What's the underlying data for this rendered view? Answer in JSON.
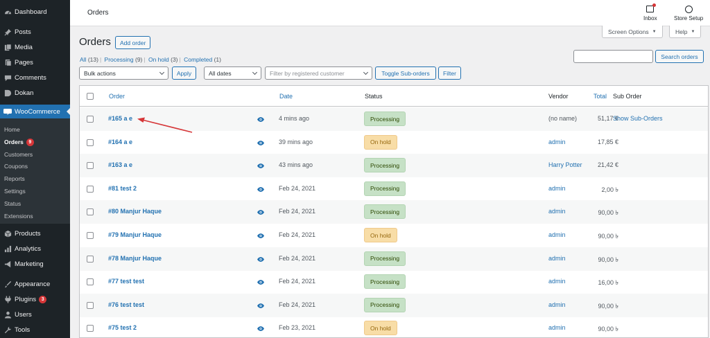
{
  "sidebar": {
    "top_items": [
      {
        "label": "Dashboard",
        "icon": "dashboard-icon"
      },
      {
        "label": "Posts",
        "icon": "pin-icon"
      },
      {
        "label": "Media",
        "icon": "media-icon"
      },
      {
        "label": "Pages",
        "icon": "pages-icon"
      },
      {
        "label": "Comments",
        "icon": "comments-icon"
      },
      {
        "label": "Dokan",
        "icon": "dokan-icon"
      }
    ],
    "woocommerce": {
      "label": "WooCommerce",
      "icon": "woocommerce-icon"
    },
    "submenu": [
      {
        "label": "Home"
      },
      {
        "label": "Orders",
        "badge": "9"
      },
      {
        "label": "Customers"
      },
      {
        "label": "Coupons"
      },
      {
        "label": "Reports"
      },
      {
        "label": "Settings"
      },
      {
        "label": "Status"
      },
      {
        "label": "Extensions"
      }
    ],
    "bottom_items": [
      {
        "label": "Products",
        "icon": "products-icon"
      },
      {
        "label": "Analytics",
        "icon": "analytics-icon"
      },
      {
        "label": "Marketing",
        "icon": "marketing-icon"
      },
      {
        "label": "Appearance",
        "icon": "appearance-icon"
      },
      {
        "label": "Plugins",
        "icon": "plugins-icon",
        "badge": "3"
      },
      {
        "label": "Users",
        "icon": "users-icon"
      },
      {
        "label": "Tools",
        "icon": "tools-icon"
      }
    ]
  },
  "topbar": {
    "title": "Orders",
    "inbox_label": "Inbox",
    "store_setup_label": "Store Setup"
  },
  "screen_options_label": "Screen Options",
  "help_label": "Help",
  "page_title": "Orders",
  "add_order_label": "Add order",
  "filters": {
    "views": [
      {
        "label": "All",
        "count": "(13)"
      },
      {
        "label": "Processing",
        "count": "(9)"
      },
      {
        "label": "On hold",
        "count": "(3)"
      },
      {
        "label": "Completed",
        "count": "(1)"
      }
    ],
    "separator": "|",
    "bulk_actions": "Bulk actions",
    "apply_label": "Apply",
    "all_dates": "All dates",
    "customer_placeholder": "Filter by registered customer",
    "toggle_suborders_label": "Toggle Sub-orders",
    "filter_label": "Filter",
    "search_value": "",
    "search_button_label": "Search orders"
  },
  "table": {
    "headers": {
      "order": "Order",
      "date": "Date",
      "status": "Status",
      "total": "Total",
      "vendor": "Vendor",
      "sub_order": "Sub Order"
    },
    "rows": [
      {
        "order": "#165 a e",
        "date": "4 mins ago",
        "status": "Processing",
        "status_type": "processing",
        "total": "51,17 €",
        "vendor": "(no name)",
        "vendor_link": false,
        "sub_order": "Show Sub-Orders"
      },
      {
        "order": "#164 a e",
        "date": "39 mins ago",
        "status": "On hold",
        "status_type": "onhold",
        "total": "17,85 €",
        "vendor": "admin",
        "vendor_link": true,
        "sub_order": ""
      },
      {
        "order": "#163 a e",
        "date": "43 mins ago",
        "status": "Processing",
        "status_type": "processing",
        "total": "21,42 €",
        "vendor": "Harry Potter",
        "vendor_link": true,
        "sub_order": ""
      },
      {
        "order": "#81 test 2",
        "date": "Feb 24, 2021",
        "status": "Processing",
        "status_type": "processing",
        "total": "2,00 ৳",
        "vendor": "admin",
        "vendor_link": true,
        "sub_order": ""
      },
      {
        "order": "#80 Manjur Haque",
        "date": "Feb 24, 2021",
        "status": "Processing",
        "status_type": "processing",
        "total": "90,00 ৳",
        "vendor": "admin",
        "vendor_link": true,
        "sub_order": ""
      },
      {
        "order": "#79 Manjur Haque",
        "date": "Feb 24, 2021",
        "status": "On hold",
        "status_type": "onhold",
        "total": "90,00 ৳",
        "vendor": "admin",
        "vendor_link": true,
        "sub_order": ""
      },
      {
        "order": "#78 Manjur Haque",
        "date": "Feb 24, 2021",
        "status": "Processing",
        "status_type": "processing",
        "total": "90,00 ৳",
        "vendor": "admin",
        "vendor_link": true,
        "sub_order": ""
      },
      {
        "order": "#77 test test",
        "date": "Feb 24, 2021",
        "status": "Processing",
        "status_type": "processing",
        "total": "16,00 ৳",
        "vendor": "admin",
        "vendor_link": true,
        "sub_order": ""
      },
      {
        "order": "#76 test test",
        "date": "Feb 24, 2021",
        "status": "Processing",
        "status_type": "processing",
        "total": "90,00 ৳",
        "vendor": "admin",
        "vendor_link": true,
        "sub_order": ""
      },
      {
        "order": "#75 test 2",
        "date": "Feb 23, 2021",
        "status": "On hold",
        "status_type": "onhold",
        "total": "90,00 ৳",
        "vendor": "admin",
        "vendor_link": true,
        "sub_order": ""
      }
    ]
  },
  "colors": {
    "sidebar_bg": "#1d2327",
    "accent": "#2271b1",
    "processing_bg": "#c6e1c6",
    "onhold_bg": "#f8dda7",
    "annotation_arrow": "#d63638"
  }
}
